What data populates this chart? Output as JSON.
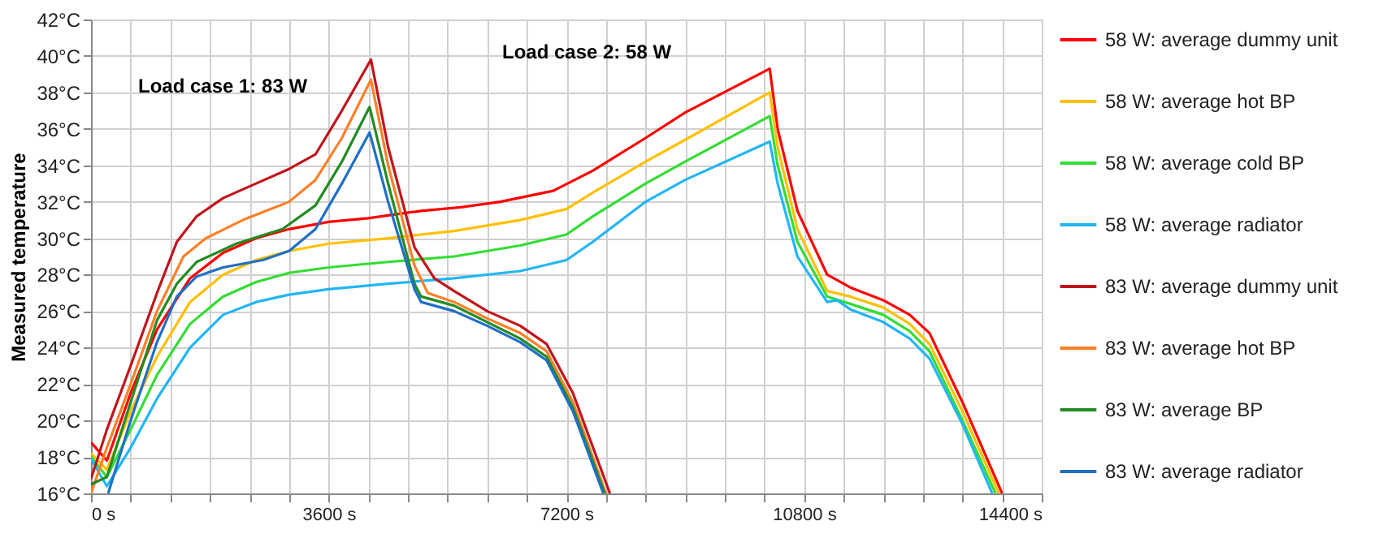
{
  "chart_data": {
    "type": "line",
    "ylabel": "Measured temperature",
    "xlim": [
      0,
      14400
    ],
    "xticks": [
      {
        "value": 0,
        "label": "0 s"
      },
      {
        "value": 600,
        "label": null
      },
      {
        "value": 1200,
        "label": null
      },
      {
        "value": 1800,
        "label": null
      },
      {
        "value": 2400,
        "label": null
      },
      {
        "value": 3000,
        "label": null
      },
      {
        "value": 3600,
        "label": "3600 s"
      },
      {
        "value": 4200,
        "label": null
      },
      {
        "value": 4800,
        "label": null
      },
      {
        "value": 5400,
        "label": null
      },
      {
        "value": 6000,
        "label": null
      },
      {
        "value": 6600,
        "label": null
      },
      {
        "value": 7200,
        "label": "7200 s"
      },
      {
        "value": 7800,
        "label": null
      },
      {
        "value": 8400,
        "label": null
      },
      {
        "value": 9000,
        "label": null
      },
      {
        "value": 9600,
        "label": null
      },
      {
        "value": 10200,
        "label": null
      },
      {
        "value": 10800,
        "label": "10800 s"
      },
      {
        "value": 11400,
        "label": null
      },
      {
        "value": 12000,
        "label": null
      },
      {
        "value": 12600,
        "label": null
      },
      {
        "value": 13200,
        "label": null
      },
      {
        "value": 13800,
        "label": null
      },
      {
        "value": 14400,
        "label": "14400 s"
      }
    ],
    "ylim": [
      16,
      42
    ],
    "yticks": [
      {
        "value": 16,
        "label": "16°C"
      },
      {
        "value": 18,
        "label": "18°C"
      },
      {
        "value": 20,
        "label": "20°C"
      },
      {
        "value": 22,
        "label": "22°C"
      },
      {
        "value": 24,
        "label": "24°C"
      },
      {
        "value": 26,
        "label": "26°C"
      },
      {
        "value": 28,
        "label": "28°C"
      },
      {
        "value": 30,
        "label": "30°C"
      },
      {
        "value": 32,
        "label": "32°C"
      },
      {
        "value": 34,
        "label": "34°C"
      },
      {
        "value": 36,
        "label": "36°C"
      },
      {
        "value": 38,
        "label": "38°C"
      },
      {
        "value": 40,
        "label": "40°C"
      },
      {
        "value": 42,
        "label": "42°C"
      }
    ],
    "grid": true,
    "legend": "right",
    "line_style": "solid",
    "annotations": [
      "Load case 1: 83 W",
      "Load case 2: 58 W"
    ],
    "series": [
      {
        "name": "58 W: average dummy unit",
        "color": "#ff0000",
        "x": [
          0,
          240,
          600,
          1000,
          1500,
          2000,
          2500,
          3000,
          3600,
          4200,
          5000,
          5600,
          6200,
          7000,
          7600,
          8400,
          9000,
          10280,
          10400,
          10700,
          11150,
          11500,
          12000,
          12400,
          12700,
          13200,
          13800
        ],
        "values": [
          18.8,
          17.8,
          21.5,
          25.0,
          27.8,
          29.2,
          30.0,
          30.5,
          30.9,
          31.1,
          31.5,
          31.7,
          32.0,
          32.6,
          33.7,
          35.5,
          36.9,
          39.3,
          36.0,
          31.5,
          28.0,
          27.3,
          26.6,
          25.8,
          24.8,
          21.0,
          16.0
        ]
      },
      {
        "name": "58 W: average hot BP",
        "color": "#ffc000",
        "x": [
          0,
          240,
          600,
          1000,
          1500,
          2000,
          2500,
          3000,
          3600,
          4500,
          5500,
          6500,
          7200,
          7600,
          8400,
          9000,
          10280,
          10400,
          10700,
          11150,
          11500,
          12000,
          12400,
          12700,
          13200,
          13750
        ],
        "values": [
          18.2,
          17.3,
          20.5,
          23.5,
          26.5,
          28.0,
          28.8,
          29.3,
          29.7,
          30.0,
          30.4,
          31.0,
          31.6,
          32.5,
          34.2,
          35.4,
          38.0,
          35.0,
          30.5,
          27.1,
          26.8,
          26.2,
          25.3,
          24.2,
          20.5,
          16.0
        ]
      },
      {
        "name": "58 W: average cold BP",
        "color": "#33dd33",
        "x": [
          0,
          240,
          600,
          1000,
          1500,
          2000,
          2500,
          3000,
          3600,
          4500,
          5500,
          6500,
          7200,
          7600,
          8400,
          9000,
          10280,
          10400,
          10700,
          11150,
          11500,
          12000,
          12400,
          12700,
          13200,
          13700
        ],
        "values": [
          18.0,
          16.9,
          19.5,
          22.5,
          25.3,
          26.8,
          27.6,
          28.1,
          28.4,
          28.7,
          29.0,
          29.6,
          30.2,
          31.2,
          33.0,
          34.2,
          36.7,
          34.0,
          29.8,
          26.8,
          26.4,
          25.8,
          24.9,
          23.8,
          20.0,
          16.0
        ]
      },
      {
        "name": "58 W: average radiator",
        "color": "#21b6f5",
        "x": [
          0,
          240,
          600,
          1000,
          1500,
          2000,
          2500,
          3000,
          3600,
          4500,
          5500,
          6500,
          7200,
          7600,
          8400,
          9000,
          10280,
          10400,
          10700,
          11150,
          11300,
          11500,
          12000,
          12400,
          12700,
          13200,
          13650
        ],
        "values": [
          17.9,
          16.4,
          18.5,
          21.2,
          24.0,
          25.8,
          26.5,
          26.9,
          27.2,
          27.5,
          27.8,
          28.2,
          28.8,
          29.8,
          32.0,
          33.2,
          35.3,
          33.0,
          29.0,
          26.5,
          26.6,
          26.1,
          25.4,
          24.5,
          23.4,
          19.8,
          16.0
        ]
      },
      {
        "name": "83 W: average dummy unit",
        "color": "#c0141c",
        "x": [
          0,
          240,
          600,
          1000,
          1300,
          1600,
          2000,
          2500,
          3000,
          3400,
          3800,
          4240,
          4500,
          4900,
          5200,
          5500,
          6000,
          6500,
          6900,
          7300,
          7860
        ],
        "values": [
          16.8,
          19.5,
          23.0,
          27.0,
          29.8,
          31.2,
          32.2,
          33.0,
          33.8,
          34.6,
          37.0,
          39.8,
          35.0,
          29.5,
          27.8,
          27.1,
          26.0,
          25.2,
          24.2,
          21.5,
          16.0
        ]
      },
      {
        "name": "83 W: average hot BP",
        "color": "#ff7f27",
        "x": [
          0,
          240,
          600,
          1000,
          1400,
          1740,
          2300,
          3000,
          3400,
          3800,
          4240,
          4500,
          4900,
          5100,
          5500,
          6000,
          6500,
          6900,
          7300,
          7800
        ],
        "values": [
          16.0,
          18.5,
          22.0,
          26.0,
          29.0,
          30.0,
          31.0,
          32.0,
          33.2,
          35.5,
          38.7,
          34.0,
          28.5,
          27.0,
          26.5,
          25.6,
          24.8,
          23.8,
          21.0,
          16.0
        ]
      },
      {
        "name": "83 W: average BP",
        "color": "#228b22",
        "x": [
          0,
          240,
          600,
          1000,
          1300,
          1600,
          2200,
          2900,
          3400,
          3800,
          4220,
          4500,
          4900,
          5000,
          5500,
          6000,
          6500,
          6900,
          7300,
          7780
        ],
        "values": [
          16.5,
          16.9,
          21.0,
          25.5,
          27.5,
          28.7,
          29.7,
          30.5,
          31.8,
          34.2,
          37.2,
          33.0,
          27.5,
          26.8,
          26.3,
          25.4,
          24.5,
          23.5,
          20.7,
          16.0
        ]
      },
      {
        "name": "83 W: average radiator",
        "color": "#1f6fc6",
        "x": [
          260,
          600,
          1000,
          1300,
          1600,
          2000,
          2600,
          3000,
          3400,
          3800,
          4220,
          4500,
          4900,
          5000,
          5500,
          6000,
          6500,
          6900,
          7300,
          7760
        ],
        "values": [
          16.0,
          20.0,
          24.3,
          26.8,
          27.9,
          28.4,
          28.8,
          29.3,
          30.5,
          33.0,
          35.8,
          32.0,
          27.2,
          26.5,
          26.0,
          25.2,
          24.3,
          23.3,
          20.5,
          16.0
        ]
      }
    ]
  }
}
